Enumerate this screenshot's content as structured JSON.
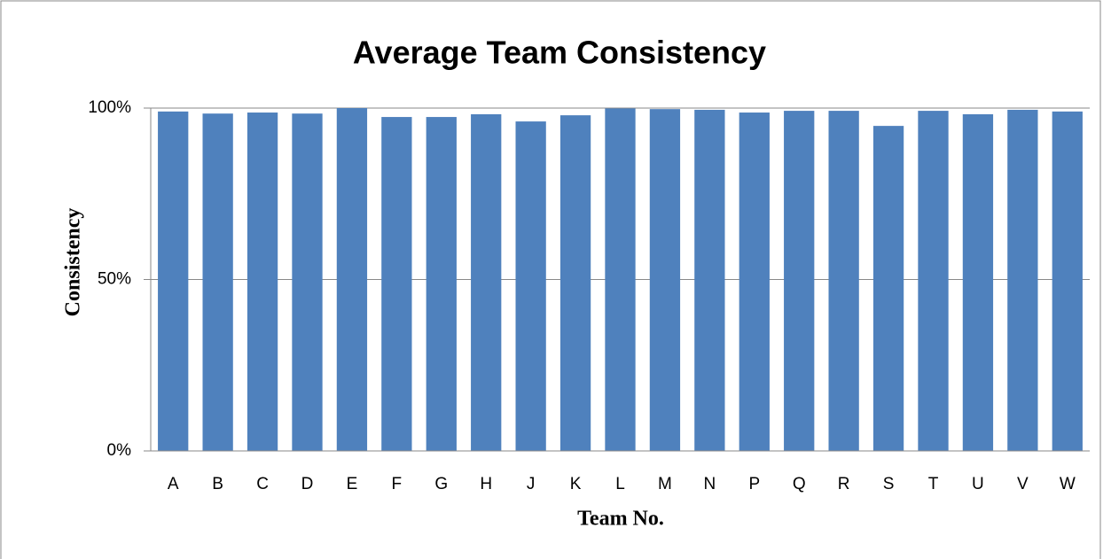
{
  "chart_data": {
    "type": "bar",
    "title": "Average Team Consistency",
    "x_label": "Team No.",
    "y_label": "Consistency",
    "categories": [
      "A",
      "B",
      "C",
      "D",
      "E",
      "F",
      "G",
      "H",
      "J",
      "K",
      "L",
      "M",
      "N",
      "P",
      "Q",
      "R",
      "S",
      "T",
      "U",
      "V",
      "W"
    ],
    "values": [
      99.0,
      98.4,
      98.7,
      98.4,
      100,
      97.4,
      97.4,
      98.2,
      96.1,
      97.9,
      99.9,
      99.7,
      99.5,
      98.7,
      99.2,
      99.2,
      94.8,
      99.2,
      98.2,
      99.5,
      99.0
    ],
    "color": "#4f81bd",
    "ylim": [
      0,
      100
    ],
    "yticks": [
      {
        "value": 0,
        "label": "0%"
      },
      {
        "value": 50,
        "label": "50%"
      },
      {
        "value": 100,
        "label": "100%"
      }
    ],
    "grid": true
  }
}
